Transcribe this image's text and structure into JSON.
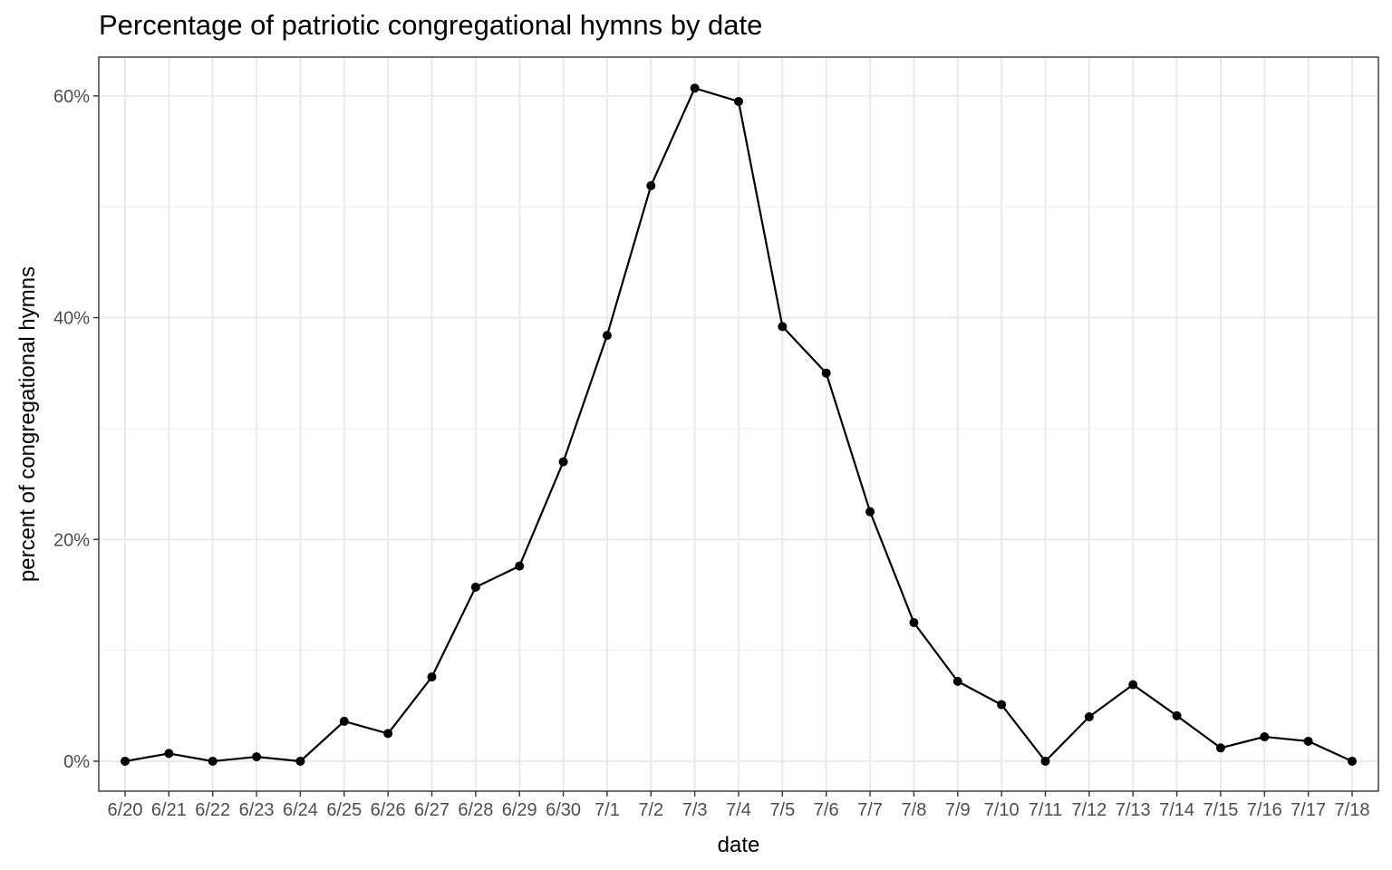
{
  "chart_data": {
    "type": "line",
    "title": "Percentage of patriotic congregational hymns by date",
    "xlabel": "date",
    "ylabel": "percent of congregational hymns",
    "categories": [
      "6/20",
      "6/21",
      "6/22",
      "6/23",
      "6/24",
      "6/25",
      "6/26",
      "6/27",
      "6/28",
      "6/29",
      "6/30",
      "7/1",
      "7/2",
      "7/3",
      "7/4",
      "7/5",
      "7/6",
      "7/7",
      "7/8",
      "7/9",
      "7/10",
      "7/11",
      "7/12",
      "7/13",
      "7/14",
      "7/15",
      "7/16",
      "7/17",
      "7/18"
    ],
    "series": [
      {
        "values": [
          0,
          0.7,
          0,
          0.4,
          0,
          3.6,
          2.5,
          7.6,
          15.7,
          17.6,
          27.0,
          38.4,
          51.9,
          60.7,
          59.5,
          39.2,
          35.0,
          22.5,
          12.5,
          7.2,
          5.1,
          0,
          4.0,
          6.9,
          4.1,
          1.2,
          2.2,
          1.8,
          0
        ]
      }
    ],
    "ylim": [
      -2.7,
      63.5
    ],
    "yticks": [
      0,
      20,
      40,
      60
    ],
    "ytick_labels": [
      "0%",
      "20%",
      "40%",
      "60%"
    ],
    "y_minor_ticks": [
      10,
      30,
      50
    ],
    "grid": true,
    "colors": {
      "line": "#000000",
      "point": "#000000",
      "grid": "#ebebeb",
      "panel_border": "#333333",
      "tick_text": "#4d4d4d"
    }
  }
}
